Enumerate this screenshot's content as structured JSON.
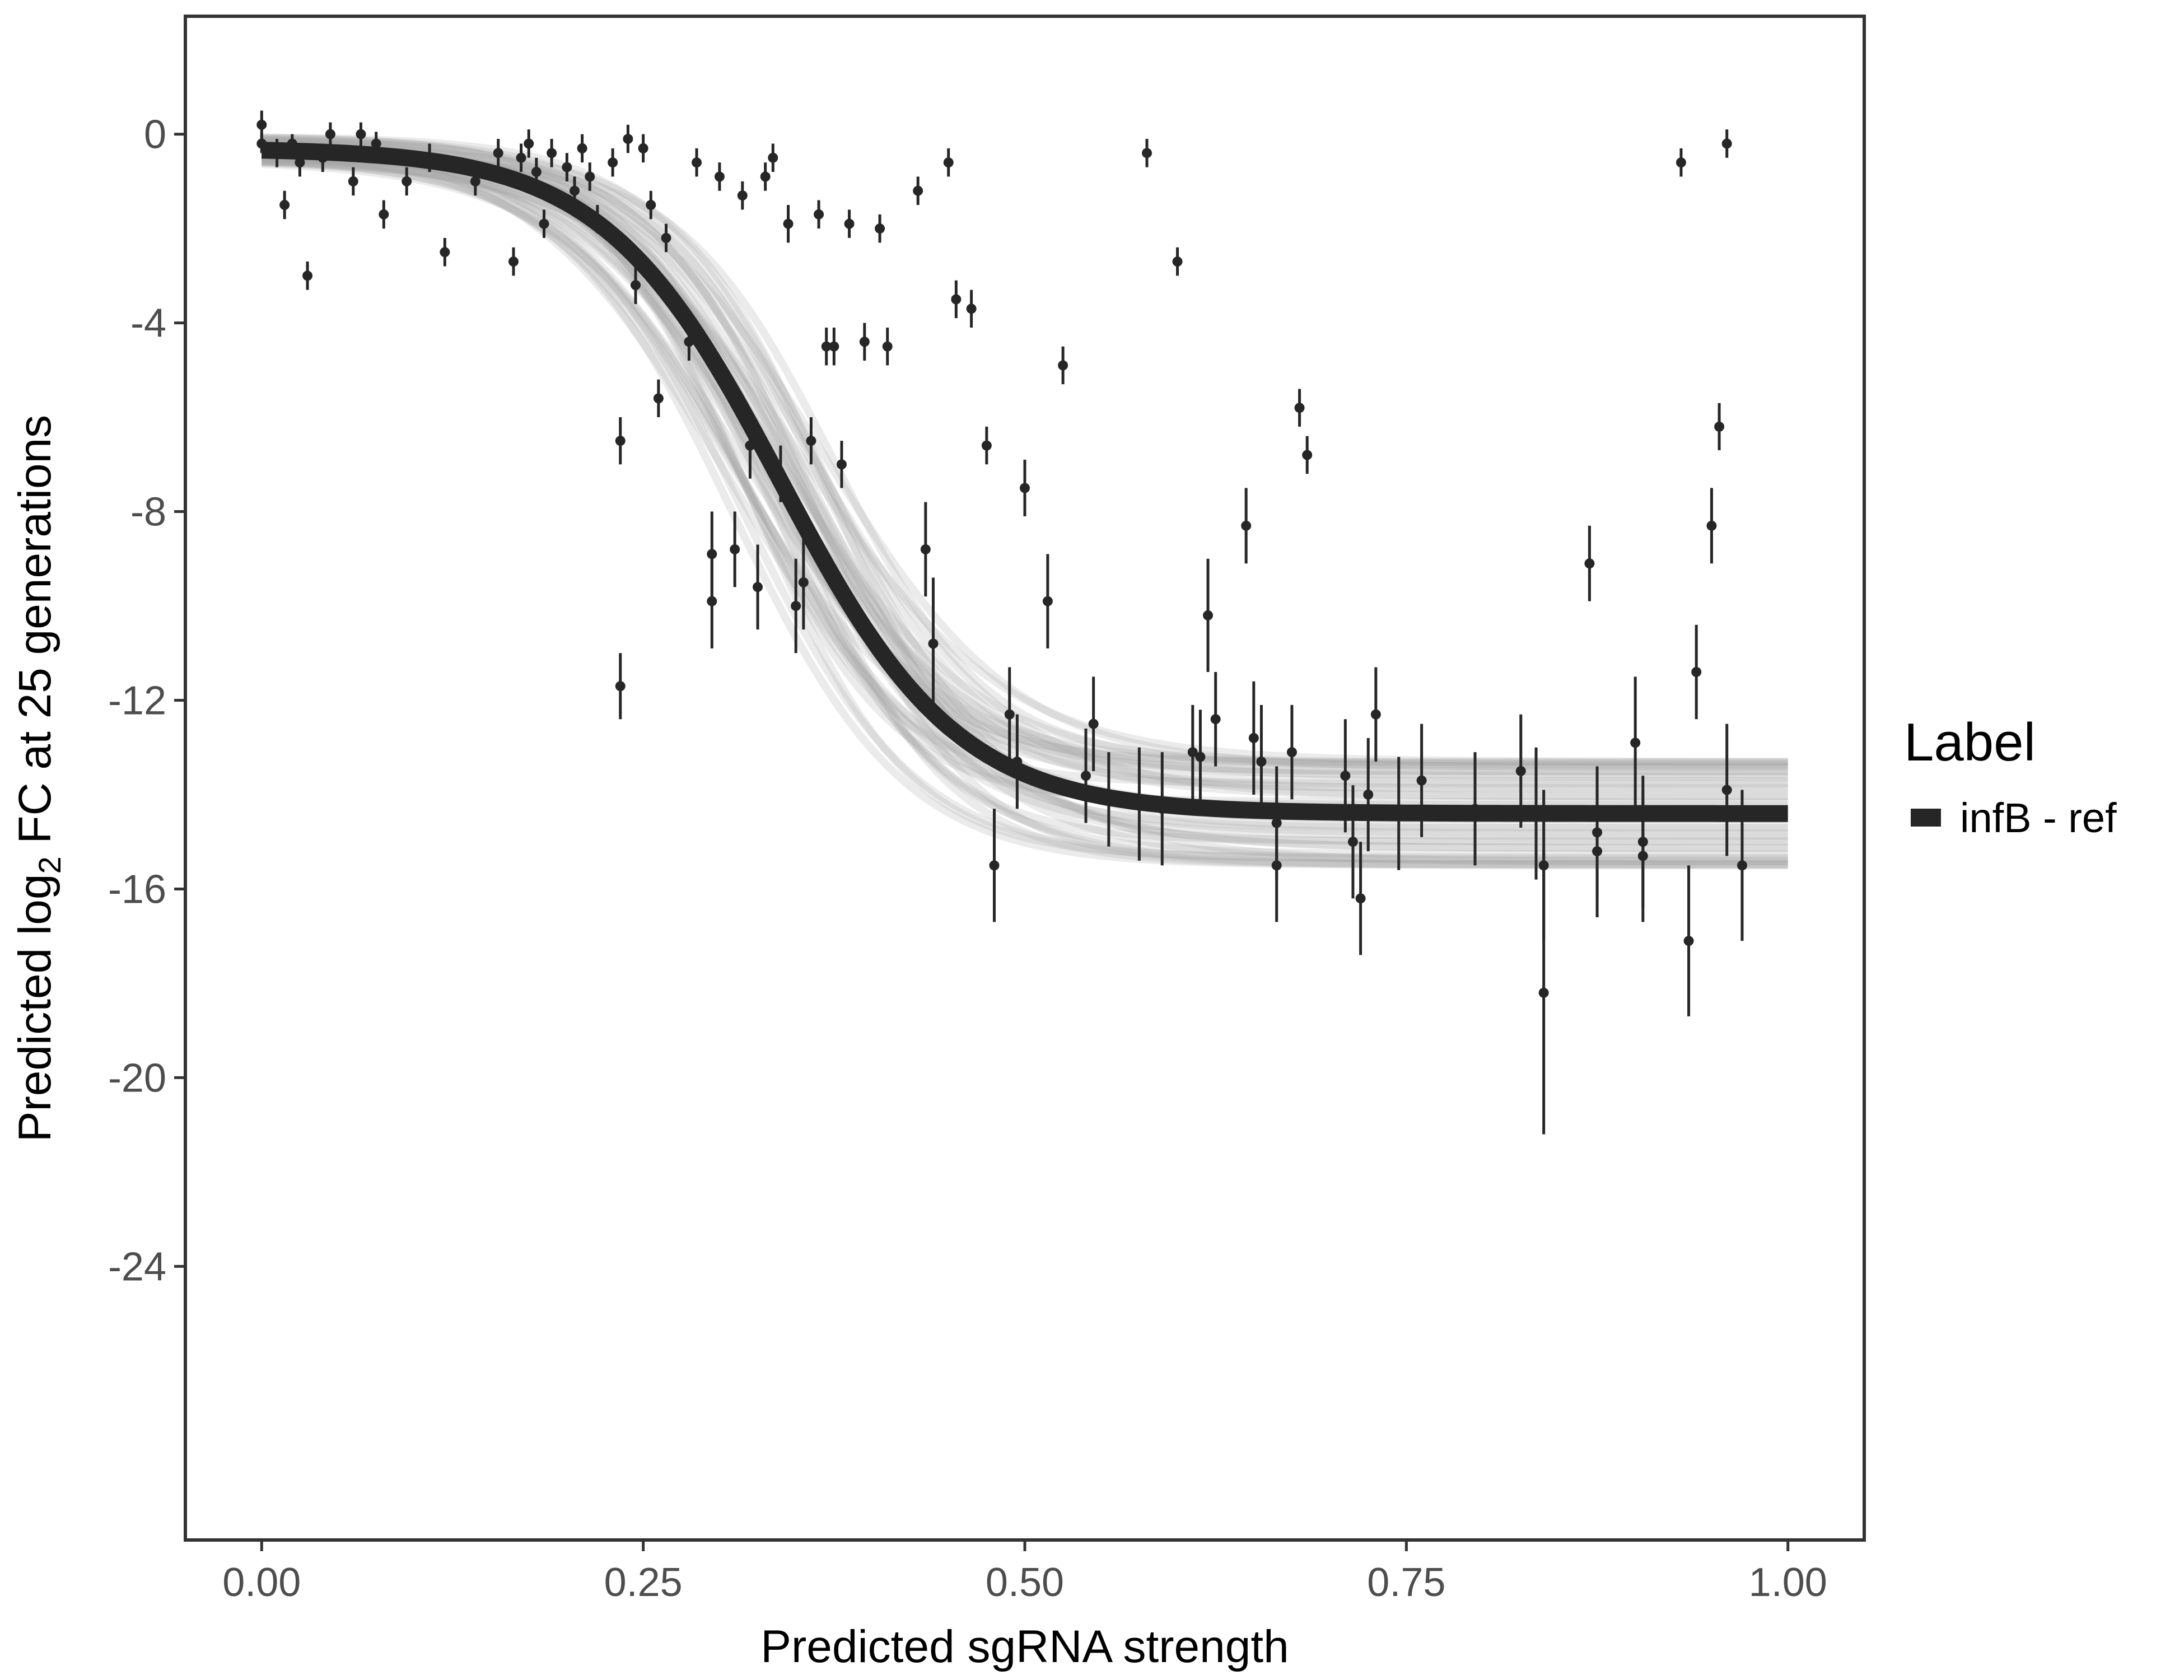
{
  "chart_data": {
    "type": "scatter",
    "xlabel": "Predicted sgRNA strength",
    "ylabel_parts": {
      "pre": "Predicted  log",
      "sub": "2",
      "post": " FC at 25 generations"
    },
    "xlim": [
      -0.05,
      1.05
    ],
    "ylim": [
      -29.8,
      2.5
    ],
    "x_ticks": [
      {
        "value": 0.0,
        "label": "0.00"
      },
      {
        "value": 0.25,
        "label": "0.25"
      },
      {
        "value": 0.5,
        "label": "0.50"
      },
      {
        "value": 0.75,
        "label": "0.75"
      },
      {
        "value": 1.0,
        "label": "1.00"
      }
    ],
    "y_ticks": [
      {
        "value": 0,
        "label": "0"
      },
      {
        "value": -4,
        "label": "-4"
      },
      {
        "value": -8,
        "label": "-8"
      },
      {
        "value": -12,
        "label": "-12"
      },
      {
        "value": -16,
        "label": "-16"
      },
      {
        "value": -20,
        "label": "-20"
      },
      {
        "value": -24,
        "label": "-24"
      }
    ],
    "grid": false,
    "legend": {
      "title": "Label",
      "position": "right",
      "entries": [
        {
          "label": "infB - ref",
          "color": "#262626"
        }
      ]
    },
    "fit_curve": {
      "model": "logistic",
      "top": -0.3,
      "bottom": -14.4,
      "midpoint": 0.34,
      "scale": 0.058,
      "color": "#262626"
    },
    "posterior_band": {
      "color": "#a6a6a6"
    },
    "points": [
      {
        "x": 0.0,
        "y": 0.2,
        "err": 0.3
      },
      {
        "x": 0.0,
        "y": -0.2,
        "err": 0.2
      },
      {
        "x": 0.01,
        "y": -0.4,
        "err": 0.3
      },
      {
        "x": 0.015,
        "y": -1.5,
        "err": 0.3
      },
      {
        "x": 0.02,
        "y": -0.2,
        "err": 0.2
      },
      {
        "x": 0.025,
        "y": -0.6,
        "err": 0.3
      },
      {
        "x": 0.03,
        "y": -3.0,
        "err": 0.3
      },
      {
        "x": 0.04,
        "y": -0.5,
        "err": 0.3
      },
      {
        "x": 0.045,
        "y": 0.0,
        "err": 0.25
      },
      {
        "x": 0.06,
        "y": -1.0,
        "err": 0.3
      },
      {
        "x": 0.065,
        "y": 0.0,
        "err": 0.25
      },
      {
        "x": 0.075,
        "y": -0.2,
        "err": 0.25
      },
      {
        "x": 0.08,
        "y": -1.7,
        "err": 0.3
      },
      {
        "x": 0.095,
        "y": -1.0,
        "err": 0.3
      },
      {
        "x": 0.11,
        "y": -0.5,
        "err": 0.3
      },
      {
        "x": 0.12,
        "y": -2.5,
        "err": 0.3
      },
      {
        "x": 0.14,
        "y": -1.0,
        "err": 0.3
      },
      {
        "x": 0.155,
        "y": -0.4,
        "err": 0.3
      },
      {
        "x": 0.165,
        "y": -2.7,
        "err": 0.3
      },
      {
        "x": 0.17,
        "y": -0.5,
        "err": 0.3
      },
      {
        "x": 0.175,
        "y": -0.2,
        "err": 0.3
      },
      {
        "x": 0.18,
        "y": -0.8,
        "err": 0.3
      },
      {
        "x": 0.185,
        "y": -1.9,
        "err": 0.3
      },
      {
        "x": 0.19,
        "y": -0.4,
        "err": 0.3
      },
      {
        "x": 0.2,
        "y": -0.7,
        "err": 0.3
      },
      {
        "x": 0.205,
        "y": -1.2,
        "err": 0.3
      },
      {
        "x": 0.21,
        "y": -0.3,
        "err": 0.3
      },
      {
        "x": 0.215,
        "y": -0.9,
        "err": 0.3
      },
      {
        "x": 0.22,
        "y": -1.8,
        "err": 0.3
      },
      {
        "x": 0.23,
        "y": -0.6,
        "err": 0.3
      },
      {
        "x": 0.235,
        "y": -6.5,
        "err": 0.5
      },
      {
        "x": 0.235,
        "y": -11.7,
        "err": 0.7
      },
      {
        "x": 0.24,
        "y": -0.1,
        "err": 0.3
      },
      {
        "x": 0.245,
        "y": -3.2,
        "err": 0.4
      },
      {
        "x": 0.25,
        "y": -0.3,
        "err": 0.3
      },
      {
        "x": 0.255,
        "y": -1.5,
        "err": 0.3
      },
      {
        "x": 0.26,
        "y": -5.6,
        "err": 0.4
      },
      {
        "x": 0.265,
        "y": -2.2,
        "err": 0.3
      },
      {
        "x": 0.28,
        "y": -4.4,
        "err": 0.4
      },
      {
        "x": 0.285,
        "y": -0.6,
        "err": 0.3
      },
      {
        "x": 0.295,
        "y": -8.9,
        "err": 0.9
      },
      {
        "x": 0.295,
        "y": -9.9,
        "err": 1.0
      },
      {
        "x": 0.3,
        "y": -0.9,
        "err": 0.3
      },
      {
        "x": 0.31,
        "y": -8.8,
        "err": 0.8
      },
      {
        "x": 0.315,
        "y": -1.3,
        "err": 0.3
      },
      {
        "x": 0.32,
        "y": -6.6,
        "err": 0.7
      },
      {
        "x": 0.325,
        "y": -9.6,
        "err": 0.9
      },
      {
        "x": 0.33,
        "y": -0.9,
        "err": 0.3
      },
      {
        "x": 0.335,
        "y": -0.5,
        "err": 0.3
      },
      {
        "x": 0.34,
        "y": -7.2,
        "err": 0.6
      },
      {
        "x": 0.345,
        "y": -1.9,
        "err": 0.4
      },
      {
        "x": 0.35,
        "y": -10.0,
        "err": 1.0
      },
      {
        "x": 0.355,
        "y": -9.5,
        "err": 1.0
      },
      {
        "x": 0.36,
        "y": -6.5,
        "err": 0.5
      },
      {
        "x": 0.365,
        "y": -1.7,
        "err": 0.3
      },
      {
        "x": 0.37,
        "y": -4.5,
        "err": 0.4
      },
      {
        "x": 0.375,
        "y": -4.5,
        "err": 0.4
      },
      {
        "x": 0.38,
        "y": -7.0,
        "err": 0.5
      },
      {
        "x": 0.385,
        "y": -1.9,
        "err": 0.3
      },
      {
        "x": 0.395,
        "y": -4.4,
        "err": 0.4
      },
      {
        "x": 0.405,
        "y": -2.0,
        "err": 0.3
      },
      {
        "x": 0.41,
        "y": -4.5,
        "err": 0.4
      },
      {
        "x": 0.43,
        "y": -1.2,
        "err": 0.3
      },
      {
        "x": 0.435,
        "y": -8.8,
        "err": 1.0
      },
      {
        "x": 0.44,
        "y": -10.8,
        "err": 1.4
      },
      {
        "x": 0.45,
        "y": -0.6,
        "err": 0.3
      },
      {
        "x": 0.455,
        "y": -3.5,
        "err": 0.4
      },
      {
        "x": 0.465,
        "y": -3.7,
        "err": 0.4
      },
      {
        "x": 0.475,
        "y": -6.6,
        "err": 0.4
      },
      {
        "x": 0.48,
        "y": -15.5,
        "err": 1.2
      },
      {
        "x": 0.49,
        "y": -12.3,
        "err": 1.0
      },
      {
        "x": 0.495,
        "y": -13.3,
        "err": 1.0
      },
      {
        "x": 0.5,
        "y": -7.5,
        "err": 0.6
      },
      {
        "x": 0.515,
        "y": -9.9,
        "err": 1.0
      },
      {
        "x": 0.525,
        "y": -4.9,
        "err": 0.4
      },
      {
        "x": 0.54,
        "y": -13.6,
        "err": 1.0
      },
      {
        "x": 0.545,
        "y": -12.5,
        "err": 1.0
      },
      {
        "x": 0.555,
        "y": -14.1,
        "err": 1.0
      },
      {
        "x": 0.575,
        "y": -14.2,
        "err": 1.2
      },
      {
        "x": 0.58,
        "y": -0.4,
        "err": 0.3
      },
      {
        "x": 0.59,
        "y": -14.3,
        "err": 1.2
      },
      {
        "x": 0.6,
        "y": -2.7,
        "err": 0.3
      },
      {
        "x": 0.61,
        "y": -13.1,
        "err": 1.0
      },
      {
        "x": 0.615,
        "y": -13.2,
        "err": 1.0
      },
      {
        "x": 0.62,
        "y": -10.2,
        "err": 1.2
      },
      {
        "x": 0.625,
        "y": -12.4,
        "err": 1.0
      },
      {
        "x": 0.645,
        "y": -8.3,
        "err": 0.8
      },
      {
        "x": 0.65,
        "y": -12.8,
        "err": 1.2
      },
      {
        "x": 0.655,
        "y": -13.3,
        "err": 1.2
      },
      {
        "x": 0.665,
        "y": -14.6,
        "err": 1.2
      },
      {
        "x": 0.665,
        "y": -15.5,
        "err": 1.2
      },
      {
        "x": 0.675,
        "y": -13.1,
        "err": 1.0
      },
      {
        "x": 0.68,
        "y": -5.8,
        "err": 0.4
      },
      {
        "x": 0.685,
        "y": -6.8,
        "err": 0.4
      },
      {
        "x": 0.71,
        "y": -13.6,
        "err": 1.2
      },
      {
        "x": 0.715,
        "y": -15.0,
        "err": 1.2
      },
      {
        "x": 0.72,
        "y": -16.2,
        "err": 1.2
      },
      {
        "x": 0.725,
        "y": -14.0,
        "err": 1.2
      },
      {
        "x": 0.73,
        "y": -12.3,
        "err": 1.0
      },
      {
        "x": 0.745,
        "y": -14.4,
        "err": 1.2
      },
      {
        "x": 0.76,
        "y": -13.7,
        "err": 1.2
      },
      {
        "x": 0.795,
        "y": -14.3,
        "err": 1.2
      },
      {
        "x": 0.825,
        "y": -13.5,
        "err": 1.2
      },
      {
        "x": 0.835,
        "y": -14.4,
        "err": 1.4
      },
      {
        "x": 0.84,
        "y": -15.5,
        "err": 1.6
      },
      {
        "x": 0.84,
        "y": -18.2,
        "err": 3.0
      },
      {
        "x": 0.87,
        "y": -9.1,
        "err": 0.8
      },
      {
        "x": 0.875,
        "y": -14.8,
        "err": 1.4
      },
      {
        "x": 0.875,
        "y": -15.2,
        "err": 1.4
      },
      {
        "x": 0.9,
        "y": -12.9,
        "err": 1.4
      },
      {
        "x": 0.905,
        "y": -15.0,
        "err": 1.4
      },
      {
        "x": 0.905,
        "y": -15.3,
        "err": 1.4
      },
      {
        "x": 0.93,
        "y": -0.6,
        "err": 0.3
      },
      {
        "x": 0.935,
        "y": -17.1,
        "err": 1.6
      },
      {
        "x": 0.94,
        "y": -11.4,
        "err": 1.0
      },
      {
        "x": 0.95,
        "y": -8.3,
        "err": 0.8
      },
      {
        "x": 0.96,
        "y": -13.9,
        "err": 1.4
      },
      {
        "x": 0.955,
        "y": -6.2,
        "err": 0.5
      },
      {
        "x": 0.96,
        "y": -0.2,
        "err": 0.3
      },
      {
        "x": 0.97,
        "y": -15.5,
        "err": 1.6
      }
    ]
  }
}
